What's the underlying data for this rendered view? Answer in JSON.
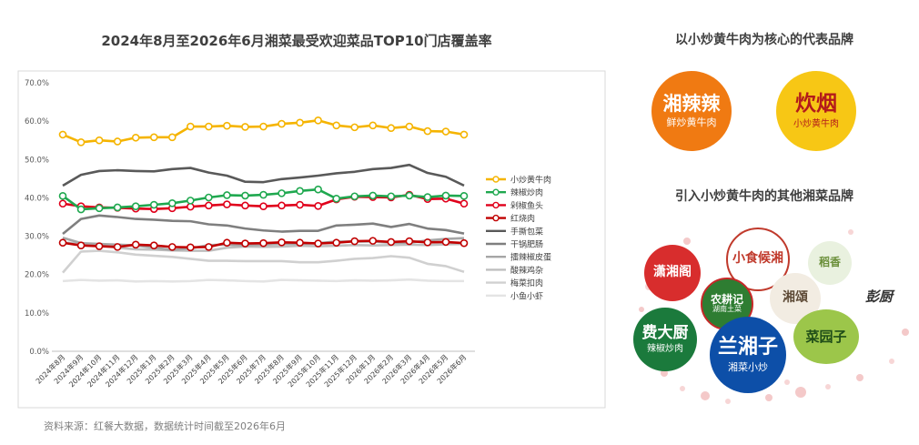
{
  "chart_data": {
    "type": "line",
    "title": "2024年8月至2026年6月湘菜最受欢迎菜品TOP10门店覆盖率",
    "categories": [
      "2024年8月",
      "2024年9月",
      "2024年10月",
      "2024年11月",
      "2024年12月",
      "2025年1月",
      "2025年2月",
      "2025年3月",
      "2025年4月",
      "2025年5月",
      "2025年6月",
      "2025年7月",
      "2025年8月",
      "2025年9月",
      "2025年10月",
      "2025年11月",
      "2025年12月",
      "2026年1月",
      "2026年2月",
      "2026年3月",
      "2026年4月",
      "2026年5月",
      "2026年6月"
    ],
    "yticks": [
      "0.0%",
      "10.0%",
      "20.0%",
      "30.0%",
      "40.0%",
      "50.0%",
      "60.0%",
      "70.0%"
    ],
    "ylim": [
      0,
      70
    ],
    "legend_position": "right",
    "series": [
      {
        "name": "小炒黄牛肉",
        "color": "#f5b400",
        "marker": true,
        "values": [
          56.5,
          54.5,
          55,
          54.7,
          55.7,
          55.8,
          55.8,
          58.6,
          58.6,
          58.8,
          58.5,
          58.6,
          59.3,
          59.6,
          60.2,
          58.9,
          58.4,
          58.9,
          58.2,
          58.6,
          57.4,
          57.3,
          56.5
        ]
      },
      {
        "name": "辣椒炒肉",
        "color": "#1fa84f",
        "marker": true,
        "values": [
          40.5,
          37,
          37.3,
          37.5,
          37.8,
          38.2,
          38.6,
          39.3,
          40.1,
          40.7,
          40.6,
          40.8,
          41.2,
          41.8,
          42.2,
          39.8,
          40.4,
          40.6,
          40.4,
          40.6,
          40.2,
          40.6,
          40.5
        ]
      },
      {
        "name": "剁椒鱼头",
        "color": "#e0001b",
        "marker": true,
        "values": [
          38.5,
          37.8,
          37.5,
          37.4,
          37.2,
          37.1,
          37.3,
          37.7,
          38,
          38.3,
          38,
          37.8,
          38,
          38.2,
          37.9,
          39.6,
          40.3,
          40.2,
          40.1,
          40.8,
          39.7,
          39.8,
          38.5
        ]
      },
      {
        "name": "红烧肉",
        "color": "#c00000",
        "marker": true,
        "values": [
          28.3,
          27.6,
          27.4,
          27.2,
          27.8,
          27.6,
          27.2,
          27.1,
          27.2,
          28.3,
          28.1,
          28.2,
          28.4,
          28.3,
          28.1,
          28.3,
          28.7,
          28.8,
          28.5,
          28.7,
          28.4,
          28.5,
          28.2
        ]
      },
      {
        "name": "手撕包菜",
        "color": "#595959",
        "marker": false,
        "values": [
          43.2,
          46,
          47,
          47.2,
          47,
          46.9,
          47.5,
          47.8,
          46.6,
          45.8,
          44.2,
          44.1,
          44.9,
          45.3,
          45.8,
          46.4,
          46.8,
          47.5,
          47.8,
          48.6,
          46.5,
          45.5,
          43.2
        ]
      },
      {
        "name": "干锅肥肠",
        "color": "#7f7f7f",
        "marker": false,
        "values": [
          30.6,
          34.5,
          35.4,
          35,
          34.5,
          34.3,
          34,
          33.9,
          33.1,
          32.8,
          32,
          31.5,
          31.2,
          31.4,
          31.4,
          32.8,
          33,
          33.3,
          32.4,
          33.2,
          32,
          31.6,
          30.7
        ]
      },
      {
        "name": "擂辣椒皮蛋",
        "color": "#a6a6a6",
        "marker": false,
        "values": [
          29.6,
          28.2,
          28,
          27.8,
          27.6,
          27,
          26.4,
          26.8,
          27.7,
          27.8,
          27.6,
          27.8,
          28,
          28,
          28.2,
          28.6,
          28.6,
          28.6,
          28.3,
          28.3,
          28.9,
          29.3,
          29.5
        ]
      },
      {
        "name": "酸辣鸡杂",
        "color": "#bfbfbf",
        "marker": false,
        "values": [
          28.4,
          28,
          27.6,
          27,
          26.6,
          26.5,
          26.3,
          26.2,
          26.2,
          27,
          27.3,
          27.2,
          27.3,
          27.5,
          27.4,
          27.5,
          27.7,
          27.6,
          27.7,
          27.8,
          27.7,
          27.9,
          28
        ]
      },
      {
        "name": "梅菜扣肉",
        "color": "#d0d0d0",
        "marker": false,
        "values": [
          20.5,
          26,
          26.2,
          25.8,
          25.2,
          24.9,
          24.6,
          24.1,
          23.6,
          23.6,
          23.5,
          23.5,
          23.5,
          23.2,
          23.2,
          23.6,
          24.1,
          24.3,
          24.8,
          24.4,
          22.8,
          22.2,
          20.7
        ]
      },
      {
        "name": "小鱼小虾",
        "color": "#e4e4e4",
        "marker": false,
        "values": [
          18.3,
          18.6,
          18.4,
          18.5,
          18.2,
          18.3,
          18.2,
          18.3,
          18.6,
          18.5,
          18.3,
          18.2,
          18.6,
          18.5,
          18.4,
          18.3,
          18.5,
          18.4,
          18.5,
          18.7,
          18.4,
          18.3,
          18.3
        ]
      }
    ]
  },
  "source_note": "资料来源：红餐大数据，数据统计时间截至2026年6月",
  "right_panel": {
    "core_title": "以小炒黄牛肉为核心的代表品牌",
    "core_brands": [
      {
        "main": "湘辣辣",
        "sub": "鲜炒黄牛肉",
        "bg": "#f07a12",
        "fg": "#ffffff"
      },
      {
        "main": "炊烟",
        "sub": "小炒黄牛肉",
        "bg": "#f7c715",
        "fg": "#b31b1b"
      }
    ],
    "other_title": "引入小炒黄牛肉的其他湘菜品牌",
    "other_brands": [
      {
        "main": "潇湘阁",
        "sub": "",
        "bg": "#d82d2d",
        "fg": "#ffffff"
      },
      {
        "main": "小食候湘",
        "sub": "",
        "bg": "#ffffff",
        "fg": "#c0392b"
      },
      {
        "main": "稻香",
        "sub": "",
        "bg": "#e9f1df",
        "fg": "#6b8f3a"
      },
      {
        "main": "农耕记",
        "sub": "湖南土菜",
        "bg": "#2e7d32",
        "fg": "#ffffff"
      },
      {
        "main": "湘頌",
        "sub": "",
        "bg": "#f2ece2",
        "fg": "#5d4a36"
      },
      {
        "main": "费大厨",
        "sub": "辣椒炒肉",
        "bg": "#1b7a3c",
        "fg": "#ffffff"
      },
      {
        "main": "兰湘子",
        "sub": "湘菜小炒",
        "bg": "#0d4fa8",
        "fg": "#ffffff"
      },
      {
        "main": "菜园子",
        "sub": "",
        "bg": "#9cc64a",
        "fg": "#1f4d18"
      },
      {
        "main": "彭厨",
        "sub": "",
        "bg": "#ffffff",
        "fg": "#333333"
      }
    ]
  }
}
